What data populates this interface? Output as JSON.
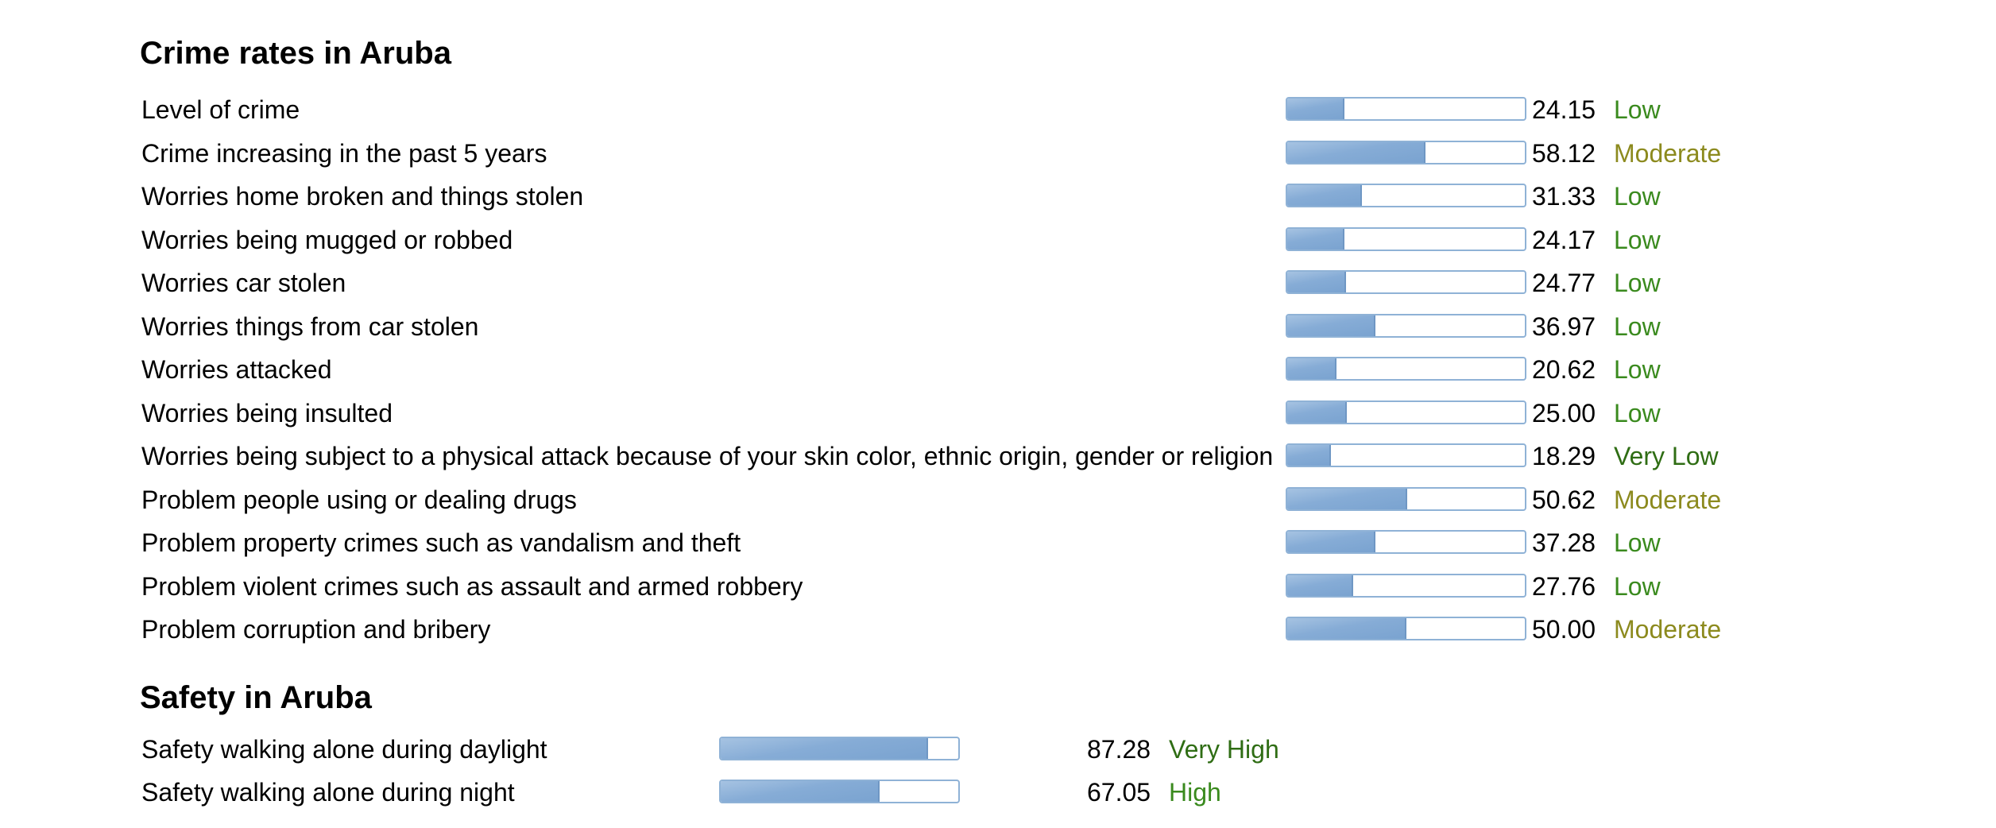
{
  "chart_data": [
    {
      "type": "bar",
      "title": "Crime rates in Aruba",
      "xlim": [
        0,
        100
      ],
      "categories": [
        "Level of crime",
        "Crime increasing in the past 5 years",
        "Worries home broken and things stolen",
        "Worries being mugged or robbed",
        "Worries car stolen",
        "Worries things from car stolen",
        "Worries attacked",
        "Worries being insulted",
        "Worries being subject to a physical attack because of your skin color, ethnic origin, gender or religion",
        "Problem people using or dealing drugs",
        "Problem property crimes such as vandalism and theft",
        "Problem violent crimes such as assault and armed robbery",
        "Problem corruption and bribery"
      ],
      "values": [
        24.15,
        58.12,
        31.33,
        24.17,
        24.77,
        36.97,
        20.62,
        25.0,
        18.29,
        50.62,
        37.28,
        27.76,
        50.0
      ],
      "value_labels": [
        "24.15",
        "58.12",
        "31.33",
        "24.17",
        "24.77",
        "36.97",
        "20.62",
        "25.00",
        "18.29",
        "50.62",
        "37.28",
        "27.76",
        "50.00"
      ],
      "ratings": [
        "Low",
        "Moderate",
        "Low",
        "Low",
        "Low",
        "Low",
        "Low",
        "Low",
        "Very Low",
        "Moderate",
        "Low",
        "Low",
        "Moderate"
      ]
    },
    {
      "type": "bar",
      "title": "Safety in Aruba",
      "xlim": [
        0,
        100
      ],
      "categories": [
        "Safety walking alone during daylight",
        "Safety walking alone during night"
      ],
      "values": [
        87.28,
        67.05
      ],
      "value_labels": [
        "87.28",
        "67.05"
      ],
      "ratings": [
        "Very High",
        "High"
      ]
    }
  ],
  "rating_colors": {
    "Very Low": "#2f6d14",
    "Low": "#3a8a1e",
    "Moderate": "#8c8a1e",
    "High": "#3a8a1e",
    "Very High": "#2f6d14"
  }
}
